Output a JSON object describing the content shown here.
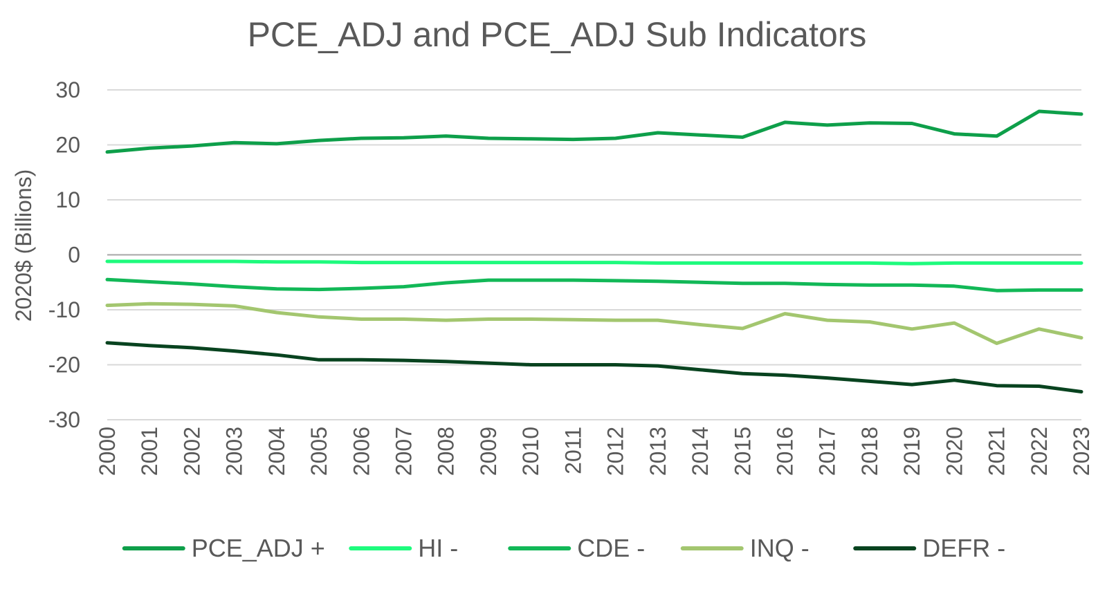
{
  "chart_data": {
    "type": "line",
    "title": "PCE_ADJ and PCE_ADJ Sub Indicators",
    "xlabel": "",
    "ylabel": "2020$ (Billions)",
    "ylim": [
      -30,
      30
    ],
    "yticks": [
      "30",
      "20",
      "10",
      "0",
      "-10",
      "-20",
      "-30"
    ],
    "ytick_values": [
      30,
      20,
      10,
      0,
      -10,
      -20,
      -30
    ],
    "grid": true,
    "legend_position": "bottom",
    "categories": [
      "2000",
      "2001",
      "2002",
      "2003",
      "2004",
      "2005",
      "2006",
      "2007",
      "2008",
      "2009",
      "2010",
      "2011",
      "2012",
      "2013",
      "2014",
      "2015",
      "2016",
      "2017",
      "2018",
      "2019",
      "2020",
      "2021",
      "2022",
      "2023"
    ],
    "series": [
      {
        "name": "PCE_ADJ +",
        "color": "#0e9f4a",
        "values": [
          18.7,
          19.4,
          19.8,
          20.4,
          20.2,
          20.8,
          21.2,
          21.3,
          21.6,
          21.2,
          21.1,
          21.0,
          21.2,
          22.2,
          21.8,
          21.4,
          24.1,
          23.6,
          24.0,
          23.9,
          22.0,
          21.6,
          26.1,
          25.6
        ]
      },
      {
        "name": "HI -",
        "color": "#1efb7d",
        "values": [
          -1.2,
          -1.2,
          -1.2,
          -1.2,
          -1.3,
          -1.3,
          -1.4,
          -1.4,
          -1.4,
          -1.4,
          -1.4,
          -1.4,
          -1.4,
          -1.5,
          -1.5,
          -1.5,
          -1.5,
          -1.5,
          -1.5,
          -1.6,
          -1.5,
          -1.5,
          -1.5,
          -1.5
        ]
      },
      {
        "name": "CDE -",
        "color": "#12b857",
        "values": [
          -4.5,
          -4.9,
          -5.3,
          -5.8,
          -6.2,
          -6.3,
          -6.1,
          -5.8,
          -5.1,
          -4.6,
          -4.6,
          -4.6,
          -4.7,
          -4.8,
          -5.0,
          -5.2,
          -5.2,
          -5.4,
          -5.5,
          -5.5,
          -5.7,
          -6.5,
          -6.4,
          -6.4
        ]
      },
      {
        "name": "INQ -",
        "color": "#a3c66f",
        "values": [
          -9.2,
          -8.9,
          -9.0,
          -9.3,
          -10.5,
          -11.3,
          -11.7,
          -11.7,
          -11.9,
          -11.7,
          -11.7,
          -11.8,
          -11.9,
          -11.9,
          -12.7,
          -13.4,
          -10.7,
          -11.9,
          -12.2,
          -13.5,
          -12.4,
          -16.1,
          -13.5,
          -15.1
        ]
      },
      {
        "name": "DEFR -",
        "color": "#08431f",
        "values": [
          -16.0,
          -16.5,
          -16.9,
          -17.5,
          -18.2,
          -19.1,
          -19.1,
          -19.2,
          -19.4,
          -19.7,
          -20.0,
          -20.0,
          -20.0,
          -20.2,
          -20.9,
          -21.6,
          -21.9,
          -22.4,
          -23.0,
          -23.6,
          -22.8,
          -23.8,
          -23.9,
          -24.9
        ]
      }
    ]
  }
}
